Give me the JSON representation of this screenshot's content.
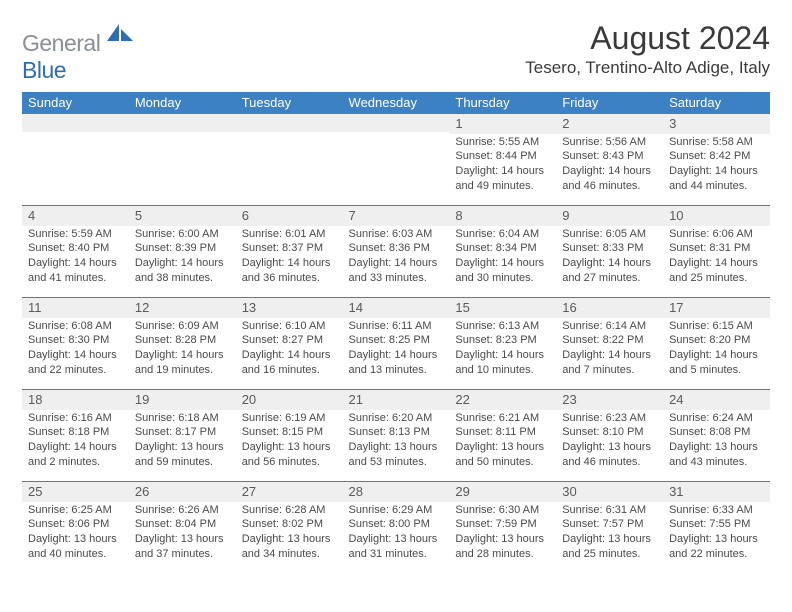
{
  "brand": {
    "word1": "General",
    "word2": "Blue"
  },
  "title": "August 2024",
  "location": "Tesero, Trentino-Alto Adige, Italy",
  "colors": {
    "header_bg": "#3b81c3",
    "header_text": "#ffffff",
    "daynum_bg": "#efefef",
    "border": "#3b81c3",
    "brand_gray": "#8a8f95",
    "brand_blue": "#2f6db2"
  },
  "day_labels": [
    "Sunday",
    "Monday",
    "Tuesday",
    "Wednesday",
    "Thursday",
    "Friday",
    "Saturday"
  ],
  "weeks": [
    [
      {
        "n": "",
        "sr": "",
        "ss": "",
        "dl": ""
      },
      {
        "n": "",
        "sr": "",
        "ss": "",
        "dl": ""
      },
      {
        "n": "",
        "sr": "",
        "ss": "",
        "dl": ""
      },
      {
        "n": "",
        "sr": "",
        "ss": "",
        "dl": ""
      },
      {
        "n": "1",
        "sr": "Sunrise: 5:55 AM",
        "ss": "Sunset: 8:44 PM",
        "dl": "Daylight: 14 hours and 49 minutes."
      },
      {
        "n": "2",
        "sr": "Sunrise: 5:56 AM",
        "ss": "Sunset: 8:43 PM",
        "dl": "Daylight: 14 hours and 46 minutes."
      },
      {
        "n": "3",
        "sr": "Sunrise: 5:58 AM",
        "ss": "Sunset: 8:42 PM",
        "dl": "Daylight: 14 hours and 44 minutes."
      }
    ],
    [
      {
        "n": "4",
        "sr": "Sunrise: 5:59 AM",
        "ss": "Sunset: 8:40 PM",
        "dl": "Daylight: 14 hours and 41 minutes."
      },
      {
        "n": "5",
        "sr": "Sunrise: 6:00 AM",
        "ss": "Sunset: 8:39 PM",
        "dl": "Daylight: 14 hours and 38 minutes."
      },
      {
        "n": "6",
        "sr": "Sunrise: 6:01 AM",
        "ss": "Sunset: 8:37 PM",
        "dl": "Daylight: 14 hours and 36 minutes."
      },
      {
        "n": "7",
        "sr": "Sunrise: 6:03 AM",
        "ss": "Sunset: 8:36 PM",
        "dl": "Daylight: 14 hours and 33 minutes."
      },
      {
        "n": "8",
        "sr": "Sunrise: 6:04 AM",
        "ss": "Sunset: 8:34 PM",
        "dl": "Daylight: 14 hours and 30 minutes."
      },
      {
        "n": "9",
        "sr": "Sunrise: 6:05 AM",
        "ss": "Sunset: 8:33 PM",
        "dl": "Daylight: 14 hours and 27 minutes."
      },
      {
        "n": "10",
        "sr": "Sunrise: 6:06 AM",
        "ss": "Sunset: 8:31 PM",
        "dl": "Daylight: 14 hours and 25 minutes."
      }
    ],
    [
      {
        "n": "11",
        "sr": "Sunrise: 6:08 AM",
        "ss": "Sunset: 8:30 PM",
        "dl": "Daylight: 14 hours and 22 minutes."
      },
      {
        "n": "12",
        "sr": "Sunrise: 6:09 AM",
        "ss": "Sunset: 8:28 PM",
        "dl": "Daylight: 14 hours and 19 minutes."
      },
      {
        "n": "13",
        "sr": "Sunrise: 6:10 AM",
        "ss": "Sunset: 8:27 PM",
        "dl": "Daylight: 14 hours and 16 minutes."
      },
      {
        "n": "14",
        "sr": "Sunrise: 6:11 AM",
        "ss": "Sunset: 8:25 PM",
        "dl": "Daylight: 14 hours and 13 minutes."
      },
      {
        "n": "15",
        "sr": "Sunrise: 6:13 AM",
        "ss": "Sunset: 8:23 PM",
        "dl": "Daylight: 14 hours and 10 minutes."
      },
      {
        "n": "16",
        "sr": "Sunrise: 6:14 AM",
        "ss": "Sunset: 8:22 PM",
        "dl": "Daylight: 14 hours and 7 minutes."
      },
      {
        "n": "17",
        "sr": "Sunrise: 6:15 AM",
        "ss": "Sunset: 8:20 PM",
        "dl": "Daylight: 14 hours and 5 minutes."
      }
    ],
    [
      {
        "n": "18",
        "sr": "Sunrise: 6:16 AM",
        "ss": "Sunset: 8:18 PM",
        "dl": "Daylight: 14 hours and 2 minutes."
      },
      {
        "n": "19",
        "sr": "Sunrise: 6:18 AM",
        "ss": "Sunset: 8:17 PM",
        "dl": "Daylight: 13 hours and 59 minutes."
      },
      {
        "n": "20",
        "sr": "Sunrise: 6:19 AM",
        "ss": "Sunset: 8:15 PM",
        "dl": "Daylight: 13 hours and 56 minutes."
      },
      {
        "n": "21",
        "sr": "Sunrise: 6:20 AM",
        "ss": "Sunset: 8:13 PM",
        "dl": "Daylight: 13 hours and 53 minutes."
      },
      {
        "n": "22",
        "sr": "Sunrise: 6:21 AM",
        "ss": "Sunset: 8:11 PM",
        "dl": "Daylight: 13 hours and 50 minutes."
      },
      {
        "n": "23",
        "sr": "Sunrise: 6:23 AM",
        "ss": "Sunset: 8:10 PM",
        "dl": "Daylight: 13 hours and 46 minutes."
      },
      {
        "n": "24",
        "sr": "Sunrise: 6:24 AM",
        "ss": "Sunset: 8:08 PM",
        "dl": "Daylight: 13 hours and 43 minutes."
      }
    ],
    [
      {
        "n": "25",
        "sr": "Sunrise: 6:25 AM",
        "ss": "Sunset: 8:06 PM",
        "dl": "Daylight: 13 hours and 40 minutes."
      },
      {
        "n": "26",
        "sr": "Sunrise: 6:26 AM",
        "ss": "Sunset: 8:04 PM",
        "dl": "Daylight: 13 hours and 37 minutes."
      },
      {
        "n": "27",
        "sr": "Sunrise: 6:28 AM",
        "ss": "Sunset: 8:02 PM",
        "dl": "Daylight: 13 hours and 34 minutes."
      },
      {
        "n": "28",
        "sr": "Sunrise: 6:29 AM",
        "ss": "Sunset: 8:00 PM",
        "dl": "Daylight: 13 hours and 31 minutes."
      },
      {
        "n": "29",
        "sr": "Sunrise: 6:30 AM",
        "ss": "Sunset: 7:59 PM",
        "dl": "Daylight: 13 hours and 28 minutes."
      },
      {
        "n": "30",
        "sr": "Sunrise: 6:31 AM",
        "ss": "Sunset: 7:57 PM",
        "dl": "Daylight: 13 hours and 25 minutes."
      },
      {
        "n": "31",
        "sr": "Sunrise: 6:33 AM",
        "ss": "Sunset: 7:55 PM",
        "dl": "Daylight: 13 hours and 22 minutes."
      }
    ]
  ]
}
